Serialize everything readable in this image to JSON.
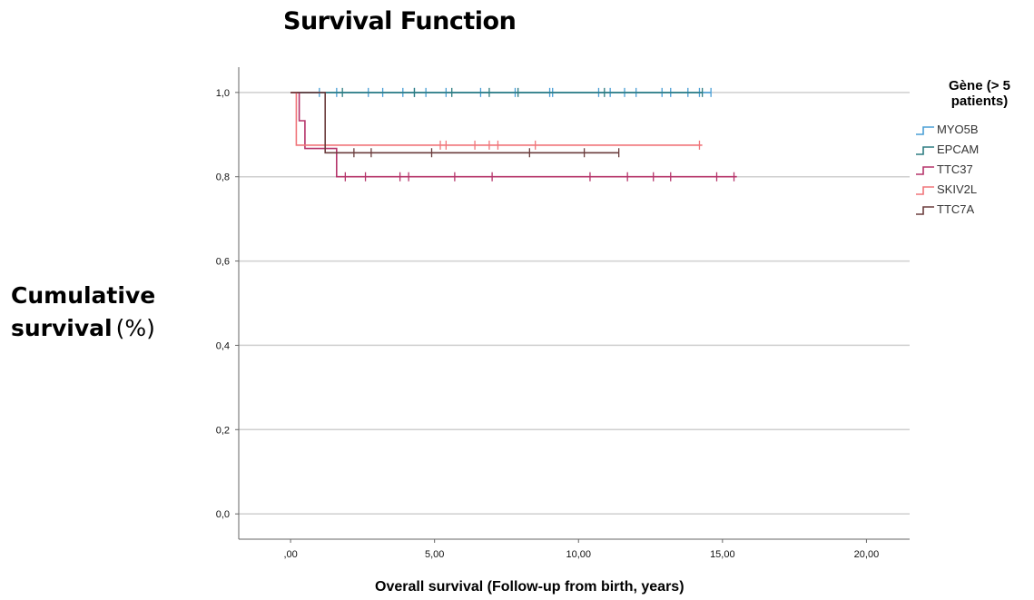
{
  "chart_data": {
    "type": "line",
    "title": "Survival Function",
    "ylabel_line1": "Cumulative",
    "ylabel_line2": "survival",
    "ylabel_unit": "(%)",
    "xlabel": "Overall survival (Follow-up from birth, years)",
    "legend_title": "Gène (> 5 patients)",
    "legend_position": "right",
    "xlim": [
      -1.8,
      21.5
    ],
    "ylim": [
      -0.06,
      1.06
    ],
    "x_ticks": [
      0,
      5,
      10,
      15,
      20
    ],
    "x_tick_labels": [
      ",00",
      "5,00",
      "10,00",
      "15,00",
      "20,00"
    ],
    "y_ticks": [
      0,
      0.2,
      0.4,
      0.6,
      0.8,
      1.0
    ],
    "y_tick_labels": [
      "0,0",
      "0,2",
      "0,4",
      "0,6",
      "0,8",
      "1,0"
    ],
    "grid": true,
    "series": [
      {
        "name": "MYO5B",
        "color": "#4a9fd6",
        "steps": [
          [
            0,
            1.0
          ],
          [
            14.6,
            1.0
          ]
        ],
        "censored": [
          [
            1.0,
            1.0
          ],
          [
            1.6,
            1.0
          ],
          [
            2.7,
            1.0
          ],
          [
            3.2,
            1.0
          ],
          [
            3.9,
            1.0
          ],
          [
            4.3,
            1.0
          ],
          [
            4.7,
            1.0
          ],
          [
            5.4,
            1.0
          ],
          [
            6.6,
            1.0
          ],
          [
            7.8,
            1.0
          ],
          [
            9.0,
            1.0
          ],
          [
            9.1,
            1.0
          ],
          [
            10.7,
            1.0
          ],
          [
            11.1,
            1.0
          ],
          [
            11.6,
            1.0
          ],
          [
            12.0,
            1.0
          ],
          [
            12.9,
            1.0
          ],
          [
            13.2,
            1.0
          ],
          [
            13.8,
            1.0
          ],
          [
            14.2,
            1.0
          ],
          [
            14.6,
            1.0
          ]
        ]
      },
      {
        "name": "EPCAM",
        "color": "#2e7d82",
        "steps": [
          [
            0,
            1.0
          ],
          [
            14.3,
            1.0
          ]
        ],
        "censored": [
          [
            1.8,
            1.0
          ],
          [
            4.3,
            1.0
          ],
          [
            5.6,
            1.0
          ],
          [
            6.9,
            1.0
          ],
          [
            7.9,
            1.0
          ],
          [
            10.9,
            1.0
          ],
          [
            14.3,
            1.0
          ]
        ]
      },
      {
        "name": "TTC37",
        "color": "#b5346a",
        "steps": [
          [
            0,
            1.0
          ],
          [
            0.3,
            0.933
          ],
          [
            0.5,
            0.867
          ],
          [
            1.6,
            0.8
          ],
          [
            15.5,
            0.8
          ]
        ],
        "censored": [
          [
            1.9,
            0.8
          ],
          [
            2.6,
            0.8
          ],
          [
            3.8,
            0.8
          ],
          [
            4.1,
            0.8
          ],
          [
            5.7,
            0.8
          ],
          [
            7.0,
            0.8
          ],
          [
            10.4,
            0.8
          ],
          [
            11.7,
            0.8
          ],
          [
            12.6,
            0.8
          ],
          [
            13.2,
            0.8
          ],
          [
            14.8,
            0.8
          ],
          [
            15.4,
            0.8
          ]
        ]
      },
      {
        "name": "SKIV2L",
        "color": "#f0757a",
        "steps": [
          [
            0,
            1.0
          ],
          [
            0.2,
            0.875
          ],
          [
            14.3,
            0.875
          ]
        ],
        "censored": [
          [
            5.2,
            0.875
          ],
          [
            5.4,
            0.875
          ],
          [
            6.4,
            0.875
          ],
          [
            6.9,
            0.875
          ],
          [
            7.2,
            0.875
          ],
          [
            8.5,
            0.875
          ],
          [
            14.2,
            0.875
          ]
        ]
      },
      {
        "name": "TTC7A",
        "color": "#6b3d3d",
        "steps": [
          [
            0,
            1.0
          ],
          [
            1.2,
            1.0
          ],
          [
            1.2,
            0.857
          ],
          [
            11.4,
            0.857
          ]
        ],
        "censored": [
          [
            2.2,
            0.857
          ],
          [
            2.8,
            0.857
          ],
          [
            4.9,
            0.857
          ],
          [
            8.3,
            0.857
          ],
          [
            10.2,
            0.857
          ],
          [
            11.4,
            0.857
          ]
        ]
      }
    ]
  }
}
